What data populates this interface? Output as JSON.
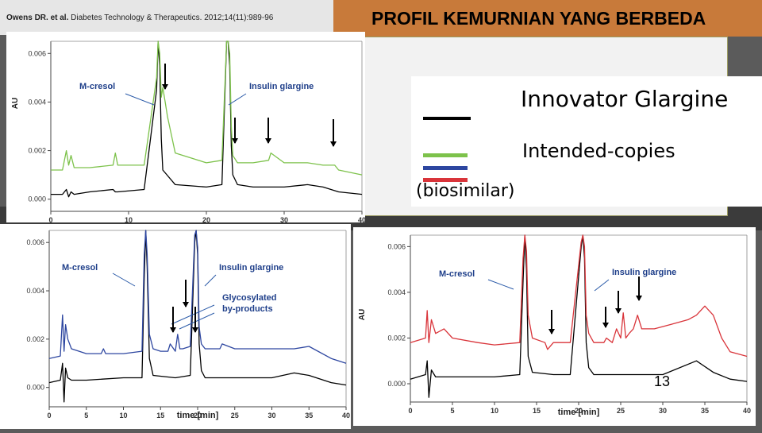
{
  "citation": {
    "authors": "Owens DR. et al.",
    "journal": "Diabetes Technology & Therapeutics. 2012;14(11):989-96"
  },
  "slide_title": "PROFIL KEMURNIAN YANG BERBEDA",
  "legend": {
    "innovator": "Innovator Glargine",
    "copies_line1": "Intended-copies",
    "copies_line2": "(biosimilar)",
    "colors": {
      "innovator": "#000000",
      "green": "#7dc24b",
      "blue": "#2d46a0",
      "red": "#d9343a"
    }
  },
  "slide_number": "13",
  "chart_data": [
    {
      "type": "line",
      "panel": "top-left",
      "ylabel": "AU",
      "xlabel": "",
      "xlim": [
        0,
        40
      ],
      "ylim": [
        -0.0005,
        0.0065
      ],
      "x_ticks": [
        "0",
        "10",
        "20",
        "30",
        "40"
      ],
      "y_ticks": [
        "0.000",
        "0.002",
        "0.004",
        "0.006"
      ],
      "annotations": [
        "M-cresol",
        "Insulin glargine"
      ],
      "series": [
        {
          "color": "#000000",
          "x": [
            0,
            1.5,
            2,
            2.3,
            2.6,
            3,
            5,
            8,
            8.3,
            8.6,
            12,
            13.6,
            13.8,
            14,
            14.2,
            14.4,
            16,
            20,
            22,
            22.6,
            22.8,
            23,
            23.2,
            23.4,
            24,
            26,
            30,
            33,
            35,
            37,
            40
          ],
          "y": [
            0.0002,
            0.0002,
            0.0004,
            0.0001,
            0.0003,
            0.0002,
            0.0003,
            0.0004,
            0.0003,
            0.0003,
            0.0004,
            0.0045,
            0.0065,
            0.0055,
            0.0025,
            0.0012,
            0.0006,
            0.0005,
            0.0006,
            0.0065,
            0.0068,
            0.0055,
            0.0022,
            0.001,
            0.0006,
            0.0005,
            0.0005,
            0.0006,
            0.0005,
            0.0003,
            0.0002
          ]
        },
        {
          "color": "#7dc24b",
          "x": [
            0,
            1.5,
            2,
            2.3,
            2.6,
            3,
            5,
            8,
            8.3,
            8.6,
            12,
            13.6,
            13.8,
            14,
            14.2,
            14.4,
            14.7,
            15,
            16,
            20,
            22,
            22.6,
            22.8,
            23,
            23.2,
            23.4,
            24,
            26,
            28,
            28.3,
            30,
            33,
            35,
            36.5,
            37,
            40
          ],
          "y": [
            0.0012,
            0.0012,
            0.002,
            0.0014,
            0.0018,
            0.0013,
            0.0013,
            0.0014,
            0.0019,
            0.0014,
            0.0014,
            0.005,
            0.0066,
            0.006,
            0.0042,
            0.0046,
            0.004,
            0.0034,
            0.0019,
            0.0015,
            0.0016,
            0.0066,
            0.0069,
            0.006,
            0.003,
            0.0018,
            0.0015,
            0.0015,
            0.0016,
            0.0019,
            0.0015,
            0.0015,
            0.0014,
            0.0014,
            0.0012,
            0.001
          ]
        }
      ]
    },
    {
      "type": "line",
      "panel": "bottom-left",
      "ylabel": "",
      "xlabel": "time [min]",
      "xlim": [
        0,
        40
      ],
      "ylim": [
        -0.0008,
        0.0065
      ],
      "x_ticks": [
        "0",
        "5",
        "10",
        "15",
        "20",
        "25",
        "30",
        "35",
        "40"
      ],
      "y_ticks": [
        "0.000",
        "0.002",
        "0.004",
        "0.006"
      ],
      "annotations": [
        "M-cresol",
        "Insulin glargine",
        "Glycosylated",
        "by-products"
      ],
      "series": [
        {
          "color": "#000000",
          "x": [
            0,
            1.5,
            1.8,
            2,
            2.2,
            2.5,
            3,
            5,
            10,
            12.5,
            12.8,
            13,
            13.2,
            13.5,
            14,
            17,
            19,
            19.6,
            19.8,
            20,
            20.2,
            20.5,
            21,
            25,
            30,
            33,
            35,
            38,
            40
          ],
          "y": [
            0.0002,
            0.0003,
            0.001,
            -0.0006,
            0.0008,
            0.0004,
            0.0003,
            0.0003,
            0.0004,
            0.0004,
            0.0045,
            0.0066,
            0.005,
            0.0012,
            0.0005,
            0.0004,
            0.0005,
            0.006,
            0.0068,
            0.0055,
            0.0018,
            0.0007,
            0.0004,
            0.0004,
            0.0004,
            0.0006,
            0.0005,
            0.0002,
            0.0001
          ]
        },
        {
          "color": "#2d46a0",
          "x": [
            0,
            1.5,
            1.8,
            2,
            2.2,
            2.5,
            3,
            5,
            7,
            7.3,
            7.6,
            10,
            12.5,
            12.8,
            13,
            13.2,
            13.5,
            14,
            15,
            16,
            16.3,
            17,
            17.3,
            17.6,
            18,
            19,
            19.6,
            19.8,
            20,
            20.2,
            20.5,
            21,
            23,
            23.3,
            25,
            30,
            33,
            35,
            38,
            40
          ],
          "y": [
            0.0012,
            0.0013,
            0.003,
            0.0015,
            0.0026,
            0.002,
            0.0016,
            0.0014,
            0.0014,
            0.0016,
            0.0014,
            0.0014,
            0.0015,
            0.0055,
            0.0067,
            0.0055,
            0.0022,
            0.0016,
            0.0015,
            0.0015,
            0.0018,
            0.0015,
            0.0022,
            0.0016,
            0.0016,
            0.0017,
            0.0063,
            0.0069,
            0.0058,
            0.0025,
            0.0018,
            0.0016,
            0.0016,
            0.0018,
            0.0016,
            0.0016,
            0.0016,
            0.0017,
            0.0012,
            0.001
          ]
        }
      ]
    },
    {
      "type": "line",
      "panel": "bottom-right",
      "ylabel": "AU",
      "xlabel": "time [min]",
      "xlim": [
        0,
        40
      ],
      "ylim": [
        -0.0008,
        0.0065
      ],
      "x_ticks": [
        "0",
        "5",
        "10",
        "15",
        "20",
        "25",
        "30",
        "35",
        "40"
      ],
      "y_ticks": [
        "0.000",
        "0.002",
        "0.004",
        "0.006"
      ],
      "annotations": [
        "M-cresol",
        "Insulin glargine"
      ],
      "series": [
        {
          "color": "#000000",
          "x": [
            0,
            1.8,
            2,
            2.2,
            2.5,
            3,
            5,
            10,
            13,
            13.4,
            13.6,
            13.8,
            14,
            14.5,
            17,
            19,
            20.3,
            20.5,
            20.7,
            20.9,
            21.2,
            21.8,
            25,
            30,
            34,
            36,
            38,
            40
          ],
          "y": [
            0.0002,
            0.0004,
            0.001,
            -0.0006,
            0.0006,
            0.0003,
            0.0003,
            0.0003,
            0.0004,
            0.0045,
            0.0066,
            0.005,
            0.0012,
            0.0005,
            0.0004,
            0.0004,
            0.006,
            0.0068,
            0.0055,
            0.0018,
            0.0007,
            0.0004,
            0.0004,
            0.0004,
            0.001,
            0.0005,
            0.0002,
            0.0001
          ]
        },
        {
          "color": "#d9343a",
          "x": [
            0,
            1.8,
            2,
            2.2,
            2.5,
            3,
            4,
            5,
            8,
            10,
            13,
            13.4,
            13.6,
            13.8,
            14,
            14.5,
            16,
            16.3,
            17,
            19,
            20.3,
            20.5,
            20.7,
            20.9,
            21.2,
            21.8,
            23,
            23.3,
            24,
            24.5,
            25,
            25.3,
            25.6,
            26,
            26.5,
            27,
            27.5,
            29,
            31,
            33,
            34,
            35,
            36,
            37,
            38,
            40
          ],
          "y": [
            0.0018,
            0.002,
            0.0032,
            0.0018,
            0.0028,
            0.0022,
            0.0024,
            0.002,
            0.0018,
            0.0017,
            0.0018,
            0.0055,
            0.0068,
            0.0058,
            0.003,
            0.002,
            0.0018,
            0.0015,
            0.0018,
            0.0018,
            0.0062,
            0.007,
            0.006,
            0.003,
            0.0022,
            0.0018,
            0.0018,
            0.002,
            0.0018,
            0.0024,
            0.002,
            0.0031,
            0.002,
            0.0022,
            0.0024,
            0.003,
            0.0024,
            0.0024,
            0.0026,
            0.0028,
            0.003,
            0.0034,
            0.003,
            0.002,
            0.0014,
            0.0012
          ]
        }
      ]
    }
  ]
}
